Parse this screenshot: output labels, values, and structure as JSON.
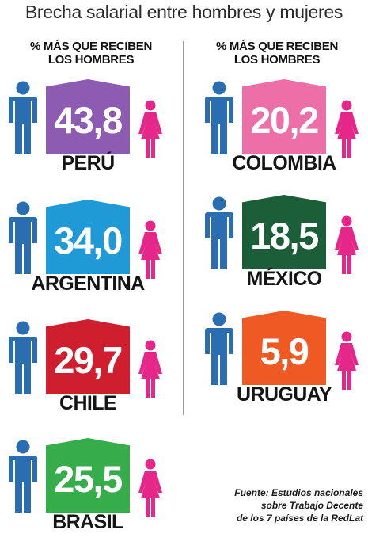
{
  "title": "Brecha salarial entre hombres y mujeres",
  "column_headers": {
    "left": [
      "% MÁS QUE RECIBEN",
      "LOS HOMBRES"
    ],
    "right": [
      "% MÁS QUE RECIBEN",
      "LOS HOMBRES"
    ]
  },
  "countries": [
    {
      "name": "PERÚ",
      "value": "43,8",
      "color": "#8e5bb3"
    },
    {
      "name": "ARGENTINA",
      "value": "34,0",
      "color": "#1f9ad6"
    },
    {
      "name": "CHILE",
      "value": "29,7",
      "color": "#cf1f2e"
    },
    {
      "name": "BRASIL",
      "value": "25,5",
      "color": "#36ad4a"
    },
    {
      "name": "COLOMBIA",
      "value": "20,2",
      "color": "#ec6fa8"
    },
    {
      "name": "MÉXICO",
      "value": "18,5",
      "color": "#1b5e38"
    },
    {
      "name": "URUGUAY",
      "value": "5,9",
      "color": "#ef5a24"
    }
  ],
  "icon_colors": {
    "man": "#2a6db0",
    "woman": "#e6278a"
  },
  "source": [
    "Fuente: Estudios nacionales",
    "sobre Trabajo Decente",
    "de los 7 países de la RedLat"
  ]
}
